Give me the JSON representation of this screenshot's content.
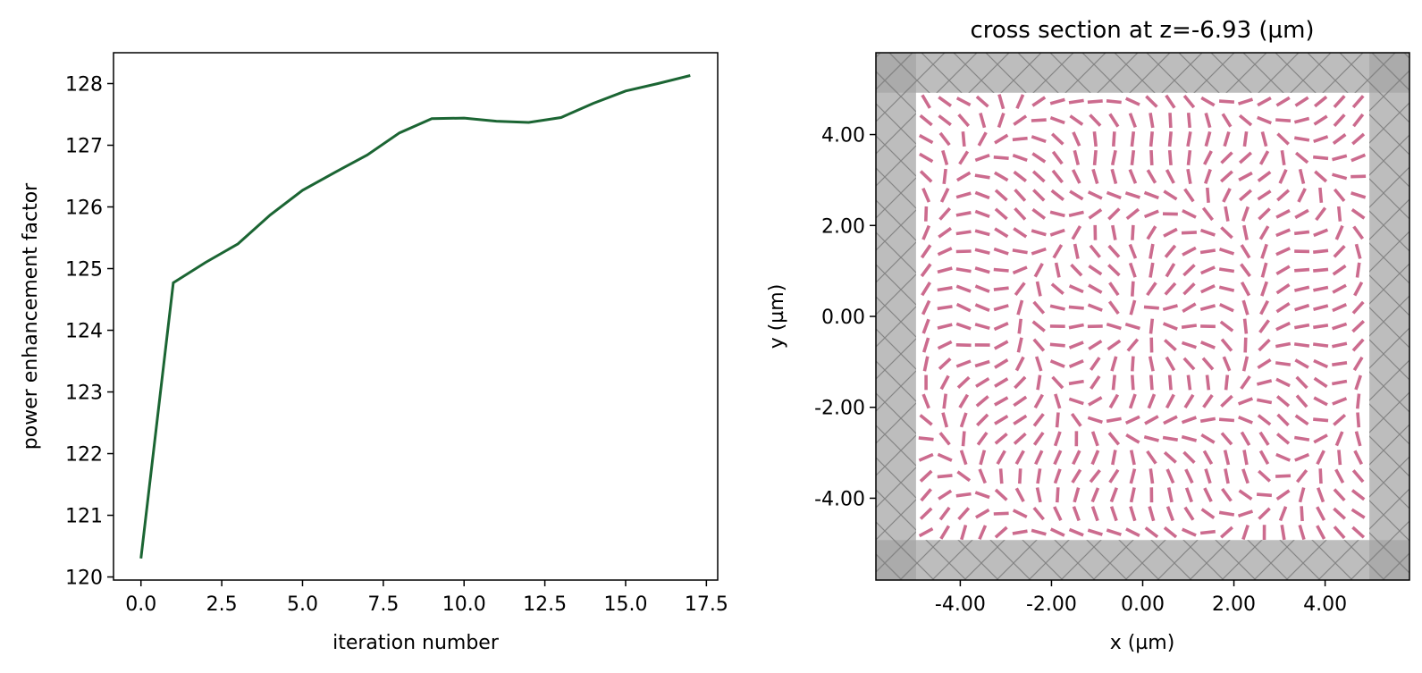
{
  "chart_data": [
    {
      "type": "line",
      "xlabel": "iteration number",
      "ylabel": "power enhancement factor",
      "xlim": [
        -0.85,
        17.85
      ],
      "ylim": [
        119.95,
        128.5
      ],
      "xticks": [
        0.0,
        2.5,
        5.0,
        7.5,
        10.0,
        12.5,
        15.0,
        17.5
      ],
      "xtick_labels": [
        "0.0",
        "2.5",
        "5.0",
        "7.5",
        "10.0",
        "12.5",
        "15.0",
        "17.5"
      ],
      "yticks": [
        120,
        121,
        122,
        123,
        124,
        125,
        126,
        127,
        128
      ],
      "ytick_labels": [
        "120",
        "121",
        "122",
        "123",
        "124",
        "125",
        "126",
        "127",
        "128"
      ],
      "grid": false,
      "series": [
        {
          "color": "#1b6533",
          "x": [
            0,
            1,
            2,
            3,
            4,
            5,
            6,
            7,
            8,
            9,
            10,
            11,
            12,
            13,
            14,
            15,
            16,
            17
          ],
          "values": [
            120.3,
            124.77,
            125.1,
            125.4,
            125.87,
            126.27,
            126.56,
            126.84,
            127.2,
            127.43,
            127.44,
            127.39,
            127.37,
            127.45,
            127.68,
            127.88,
            128.0,
            128.13
          ]
        }
      ]
    },
    {
      "type": "scatter",
      "title": "cross section at z=-6.93 (µm)",
      "xlabel": "x (µm)",
      "ylabel": "y (µm)",
      "xlim": [
        -5.85,
        5.85
      ],
      "ylim": [
        -5.8,
        5.8
      ],
      "xticks": [
        -4,
        -2,
        0,
        2,
        4
      ],
      "xtick_labels": [
        "-4.00",
        "-2.00",
        "0.00",
        "2.00",
        "4.00"
      ],
      "yticks": [
        4,
        2,
        0,
        -2,
        -4
      ],
      "ytick_labels": [
        "4.00",
        "2.00",
        "0.00",
        "-2.00",
        "-4.00"
      ],
      "grid": false,
      "pml_band_width": 0.88,
      "structure_extent": 4.95,
      "pillar_grid_count": 24,
      "pillar_grid_spacing": 0.412,
      "pillar_length": 0.33,
      "colors": {
        "pml_fill": "#a4a4a4",
        "pml_corner": "#8c8c8c",
        "pml_hatch": "#858585",
        "pillar": "#cc6b8e",
        "background": "#ffffff"
      }
    }
  ]
}
